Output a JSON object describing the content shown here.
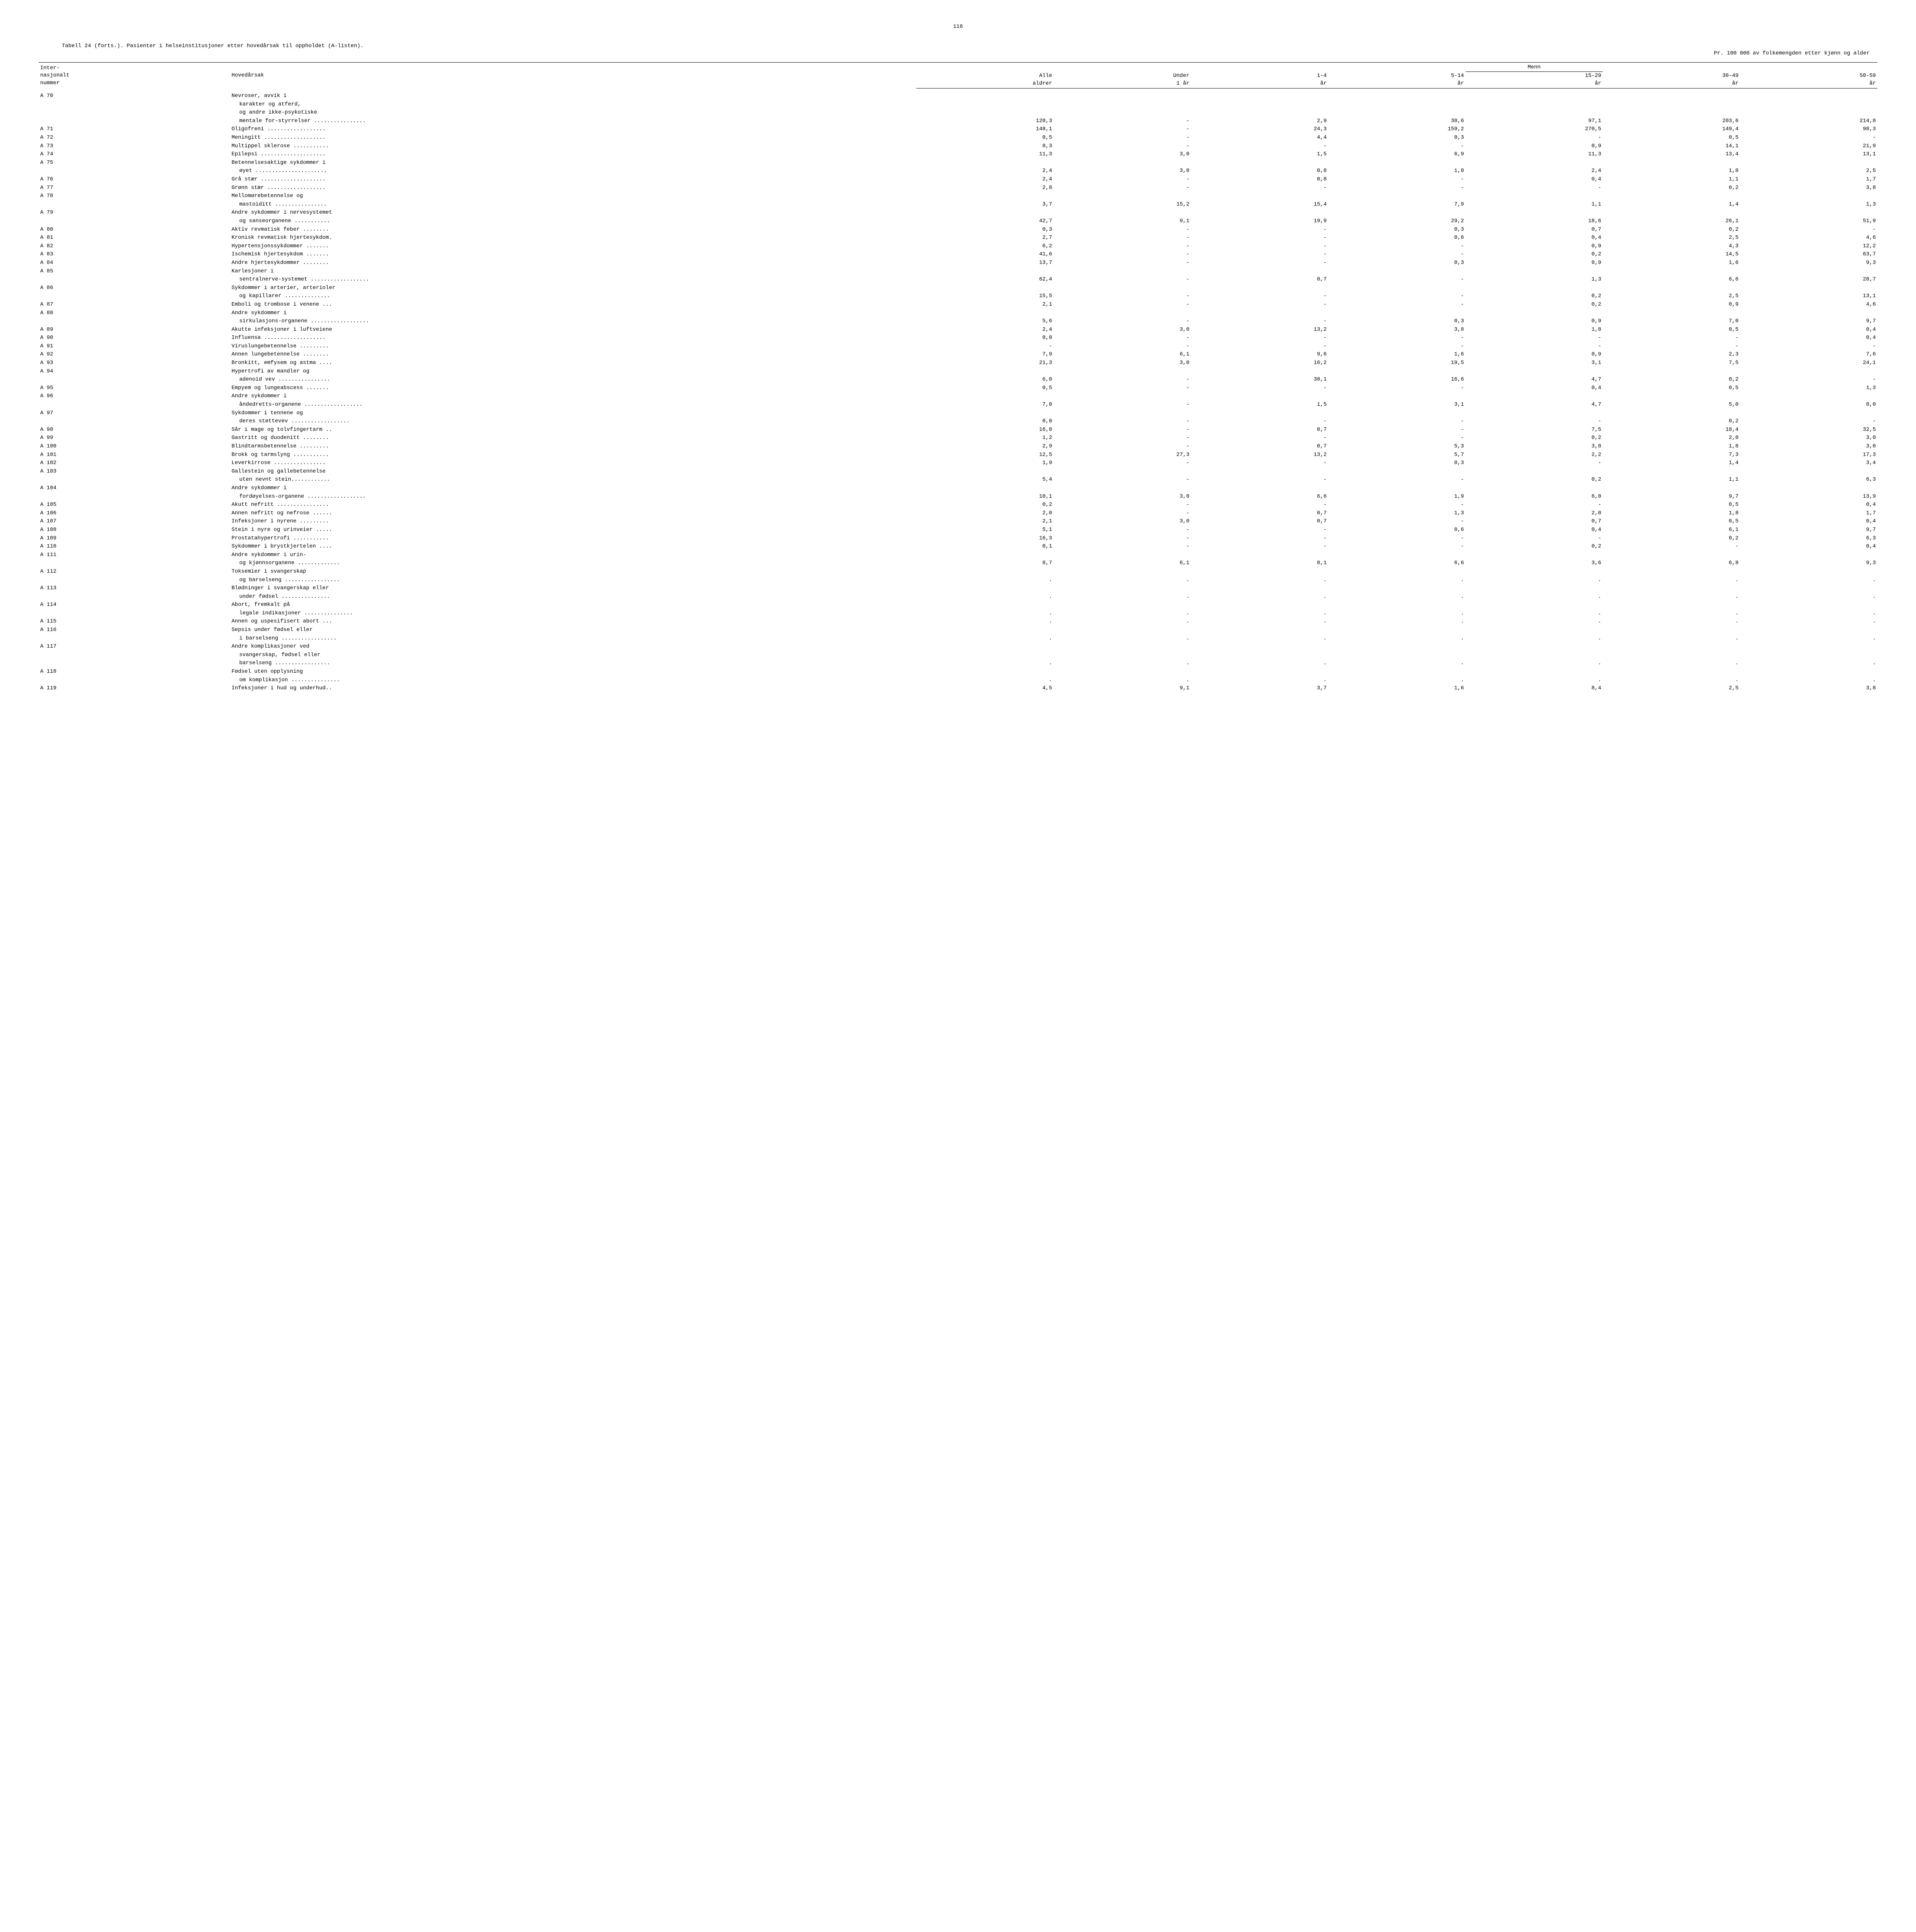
{
  "page_number": "116",
  "title_main": "Tabell 24 (forts.). Pasienter i helseinstitusjoner etter hovedårsak til oppholdet (A-listen).",
  "title_sub": "Pr. 100 000 av folkemengden etter kjønn og alder",
  "header": {
    "col_intl": "Inter-\nnasjonalt\nnummer",
    "col_cause": "Hovedårsak",
    "col_menn": "Menn",
    "col_all": "Alle\naldrer",
    "col_u1": "Under\n1 år",
    "col_1_4": "1-4\når",
    "col_5_14": "5-14\når",
    "col_15_29": "15-29\når",
    "col_30_49": "30-49\når",
    "col_50_59": "50-59\når"
  },
  "rows": [
    {
      "code": "A  70",
      "desc": "Nevroser, avvik i karakter og atferd, og andre ikke-psykotiske mentale for-styrrelser ................",
      "wrap": 4,
      "v": [
        "120,3",
        "-",
        "2,9",
        "38,6",
        "97,1",
        "203,6",
        "214,8"
      ]
    },
    {
      "code": "A  71",
      "desc": "Oligofreni ..................",
      "v": [
        "148,1",
        "-",
        "24,3",
        "159,2",
        "270,5",
        "149,4",
        "98,3"
      ]
    },
    {
      "code": "A  72",
      "desc": "Meningitt ...................",
      "v": [
        "0,5",
        "-",
        "4,4",
        "0,3",
        "-",
        "0,5",
        "-"
      ]
    },
    {
      "code": "A  73",
      "desc": "Multippel sklerose ...........",
      "v": [
        "8,3",
        "-",
        "-",
        "-",
        "0,9",
        "14,1",
        "21,9"
      ]
    },
    {
      "code": "A  74",
      "desc": "Epilepsi ....................",
      "v": [
        "11,3",
        "3,0",
        "1,5",
        "6,9",
        "11,3",
        "13,4",
        "13,1"
      ]
    },
    {
      "code": "A  75",
      "desc": "Betennelsesaktige sykdommer i øyet ......................",
      "wrap": 2,
      "v": [
        "2,4",
        "3,0",
        "0,8",
        "1,0",
        "2,4",
        "1,8",
        "2,5"
      ]
    },
    {
      "code": "A  76",
      "desc": "Grå stær ....................",
      "v": [
        "2,4",
        "-",
        "0,8",
        "-",
        "0,4",
        "1,1",
        "1,7"
      ]
    },
    {
      "code": "A  77",
      "desc": "Grønn stær ..................",
      "v": [
        "2,8",
        "-",
        "-",
        "-",
        "-",
        "0,2",
        "3,8"
      ]
    },
    {
      "code": "A  78",
      "desc": "Mellomørebetennelse og mastoiditt ................",
      "wrap": 2,
      "v": [
        "3,7",
        "15,2",
        "15,4",
        "7,9",
        "1,1",
        "1,4",
        "1,3"
      ]
    },
    {
      "code": "A  79",
      "desc": "Andre sykdommer i nervesystemet og sanseorganene ...........",
      "wrap": 2,
      "v": [
        "42,7",
        "9,1",
        "19,9",
        "29,2",
        "18,6",
        "26,1",
        "51,9"
      ]
    },
    {
      "code": "A  80",
      "desc": "Aktiv revmatisk feber ........",
      "v": [
        "0,3",
        "-",
        "-",
        "0,3",
        "0,7",
        "0,2",
        "-"
      ]
    },
    {
      "code": "A  81",
      "desc": "Kronisk revmatisk hjertesykdom.",
      "v": [
        "2,7",
        "-",
        "-",
        "0,6",
        "0,4",
        "2,5",
        "4,6"
      ]
    },
    {
      "code": "A  82",
      "desc": "Hypertensjonssykdommer .......",
      "v": [
        "6,2",
        "-",
        "-",
        "-",
        "0,9",
        "4,3",
        "12,2"
      ]
    },
    {
      "code": "A  83",
      "desc": "Ischemisk hjertesykdom .......",
      "v": [
        "41,6",
        "-",
        "-",
        "-",
        "0,2",
        "14,5",
        "63,7"
      ]
    },
    {
      "code": "A  84",
      "desc": "Andre hjertesykdommer ........",
      "v": [
        "13,7",
        "-",
        "-",
        "0,3",
        "0,9",
        "1,6",
        "9,3"
      ]
    },
    {
      "code": "A  85",
      "desc": "Karlesjoner i sentralnerve-systemet ..................",
      "wrap": 2,
      "v": [
        "62,4",
        "-",
        "0,7",
        "-",
        "1,3",
        "6,6",
        "28,7"
      ]
    },
    {
      "code": "A  86",
      "desc": "Sykdommer i arterier, arterioler og kapillarer ..............",
      "wrap": 2,
      "v": [
        "15,5",
        "-",
        "-",
        "-",
        "0,2",
        "2,5",
        "13,1"
      ]
    },
    {
      "code": "A  87",
      "desc": "Emboli og trombose i venene ...",
      "v": [
        "2,1",
        "-",
        "-",
        "-",
        "0,2",
        "0,9",
        "4,6"
      ]
    },
    {
      "code": "A  88",
      "desc": "Andre sykdommer i sirkulasjons-organene ..................",
      "wrap": 2,
      "v": [
        "5,6",
        "-",
        "-",
        "0,3",
        "0,9",
        "7,0",
        "9,7"
      ]
    },
    {
      "code": "A  89",
      "desc": "Akutte infeksjoner i luftveiene",
      "v": [
        "2,4",
        "3,0",
        "13,2",
        "3,8",
        "1,8",
        "0,5",
        "0,4"
      ]
    },
    {
      "code": "A  90",
      "desc": "Influensa ...................",
      "v": [
        "0,0",
        "-",
        "-",
        "-",
        "-",
        "-",
        "0,4"
      ]
    },
    {
      "code": "A  91",
      "desc": "Viruslungebetennelse .........",
      "v": [
        "-",
        "-",
        "-",
        "-",
        "-",
        "-",
        "-"
      ]
    },
    {
      "code": "A  92",
      "desc": "Annen lungebetennelse ........",
      "v": [
        "7,9",
        "6,1",
        "9,6",
        "1,6",
        "0,9",
        "2,3",
        "7,6"
      ]
    },
    {
      "code": "A  93",
      "desc": "Bronkitt, emfysem og astma ....",
      "v": [
        "21,3",
        "3,0",
        "16,2",
        "19,5",
        "3,1",
        "7,5",
        "24,1"
      ]
    },
    {
      "code": "A  94",
      "desc": "Hypertrofi av mandler og adenoid vev ................",
      "wrap": 2,
      "v": [
        "6,0",
        "-",
        "30,1",
        "16,6",
        "4,7",
        "0,2",
        "-"
      ]
    },
    {
      "code": "A  95",
      "desc": "Empyem og lungeabscess .......",
      "v": [
        "0,5",
        "-",
        "-",
        "-",
        "0,4",
        "0,5",
        "1,3"
      ]
    },
    {
      "code": "A  96",
      "desc": "Andre sykdommer i åndedretts-organene ..................",
      "wrap": 2,
      "v": [
        "7,0",
        "-",
        "1,5",
        "3,1",
        "4,7",
        "5,0",
        "8,0"
      ]
    },
    {
      "code": "A  97",
      "desc": "Sykdommer i tennene og deres støttevev ..................",
      "wrap": 2,
      "v": [
        "0,0",
        "-",
        "-",
        "-",
        "-",
        "0,2",
        "-"
      ]
    },
    {
      "code": "A  98",
      "desc": "Sår i mage og tolvfingertarm ..",
      "v": [
        "16,0",
        "-",
        "0,7",
        "-",
        "7,5",
        "18,4",
        "32,5"
      ]
    },
    {
      "code": "A  99",
      "desc": "Gastritt og duodenitt ........",
      "v": [
        "1,2",
        "-",
        "-",
        "-",
        "0,2",
        "2,0",
        "3,0"
      ]
    },
    {
      "code": "A 100",
      "desc": "Blindtarmsbetennelse .........",
      "v": [
        "2,9",
        "-",
        "0,7",
        "5,3",
        "3,8",
        "1,8",
        "3,0"
      ]
    },
    {
      "code": "A 101",
      "desc": "Brokk og tarmslyng ...........",
      "v": [
        "12,5",
        "27,3",
        "13,2",
        "5,7",
        "2,2",
        "7,3",
        "17,3"
      ]
    },
    {
      "code": "A 102",
      "desc": "Leverkirrose ................",
      "v": [
        "1,9",
        "-",
        "-",
        "0,3",
        "-",
        "1,4",
        "3,4"
      ]
    },
    {
      "code": "A 103",
      "desc": "Gallestein og gallebetennelse uten nevnt stein............",
      "wrap": 2,
      "v": [
        "5,4",
        "-",
        "-",
        "-",
        "0,2",
        "1,1",
        "6,3"
      ]
    },
    {
      "code": "A 104",
      "desc": "Andre sykdommer i fordøyelses-organene ..................",
      "wrap": 2,
      "v": [
        "10,1",
        "3,0",
        "6,6",
        "1,9",
        "6,0",
        "9,7",
        "13,9"
      ]
    },
    {
      "code": "A 105",
      "desc": "Akutt nefritt ................",
      "v": [
        "0,2",
        "-",
        "-",
        "-",
        "-",
        "0,5",
        "0,4"
      ]
    },
    {
      "code": "A 106",
      "desc": "Annen nefritt og nefrose ......",
      "v": [
        "2,0",
        "-",
        "0,7",
        "1,3",
        "2,0",
        "1,8",
        "1,7"
      ]
    },
    {
      "code": "A 107",
      "desc": "Infeksjoner i nyrene .........",
      "v": [
        "2,1",
        "3,0",
        "0,7",
        "-",
        "0,7",
        "0,5",
        "0,4"
      ]
    },
    {
      "code": "A 108",
      "desc": "Stein i nyre og urinveier .....",
      "v": [
        "5,1",
        "-",
        "-",
        "0,6",
        "0,4",
        "6,1",
        "9,7"
      ]
    },
    {
      "code": "A 109",
      "desc": "Prostatahypertrofi ...........",
      "v": [
        "16,3",
        "-",
        "-",
        "-",
        "-",
        "0,2",
        "6,3"
      ]
    },
    {
      "code": "A 110",
      "desc": "Sykdommer i brystkjertelen ....",
      "v": [
        "0,1",
        "-",
        "-",
        "-",
        "0,2",
        "-",
        "0,4"
      ]
    },
    {
      "code": "A 111",
      "desc": "Andre sykdommer i urin- og kjønnsorganene .............",
      "wrap": 2,
      "v": [
        "8,7",
        "6,1",
        "8,1",
        "6,6",
        "3,6",
        "6,8",
        "9,3"
      ]
    },
    {
      "code": "A 112",
      "desc": "Toksemier i svangerskap og barselseng .................",
      "wrap": 2,
      "v": [
        ".",
        ".",
        ".",
        ".",
        ".",
        ".",
        "."
      ]
    },
    {
      "code": "A 113",
      "desc": "Blødninger i svangerskap eller under fødsel ...............",
      "wrap": 2,
      "v": [
        ".",
        ".",
        ".",
        ".",
        ".",
        ".",
        "."
      ]
    },
    {
      "code": "A 114",
      "desc": "Abort, fremkalt på legale indikasjoner ...............",
      "wrap": 2,
      "v": [
        ".",
        ".",
        ".",
        ".",
        ".",
        ".",
        "."
      ]
    },
    {
      "code": "A 115",
      "desc": "Annen og uspesifisert abort ...",
      "v": [
        ".",
        ".",
        ".",
        ".",
        ".",
        ".",
        "."
      ]
    },
    {
      "code": "A 116",
      "desc": "Sepsis under fødsel eller i barselseng .................",
      "wrap": 2,
      "v": [
        ".",
        ".",
        ".",
        ".",
        ".",
        ".",
        "."
      ]
    },
    {
      "code": "A 117",
      "desc": "Andre komplikasjoner ved svangerskap, fødsel eller barselseng .................",
      "wrap": 3,
      "v": [
        ".",
        ".",
        ".",
        ".",
        ".",
        ".",
        "."
      ]
    },
    {
      "code": "A 118",
      "desc": "Fødsel uten opplysning om komplikasjon ...............",
      "wrap": 2,
      "v": [
        ".",
        ".",
        ".",
        ".",
        ".",
        ".",
        "."
      ]
    },
    {
      "code": "A 119",
      "desc": "Infeksjoner i hud og underhud..",
      "v": [
        "4,5",
        "9,1",
        "3,7",
        "1,6",
        "8,4",
        "2,5",
        "3,8"
      ]
    }
  ]
}
